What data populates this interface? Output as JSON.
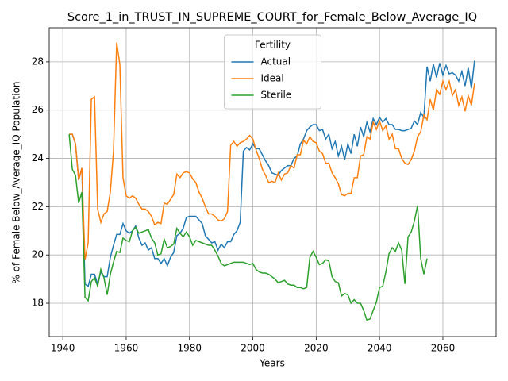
{
  "chart_data": {
    "type": "line",
    "title": "Score_1_in_TRUST_IN_SUPREME_COURT_for_Female_Below_Average_IQ",
    "xlabel": "Years",
    "ylabel": "% of Female Below_Average_IQ Population",
    "legend_title": "Fertility",
    "legend_loc": "upper center",
    "grid": true,
    "xlim": [
      1935.7,
      2076.8
    ],
    "ylim": [
      16.62,
      29.41
    ],
    "xticks": [
      1940,
      1960,
      1980,
      2000,
      2020,
      2040,
      2060
    ],
    "yticks": [
      18,
      20,
      22,
      24,
      26,
      28
    ],
    "x": [
      1942,
      1943,
      1944,
      1945,
      1946,
      1947,
      1948,
      1949,
      1950,
      1951,
      1952,
      1953,
      1954,
      1955,
      1956,
      1957,
      1958,
      1959,
      1960,
      1961,
      1962,
      1963,
      1964,
      1965,
      1966,
      1967,
      1968,
      1969,
      1970,
      1971,
      1972,
      1973,
      1974,
      1975,
      1976,
      1977,
      1978,
      1979,
      1980,
      1981,
      1982,
      1983,
      1984,
      1985,
      1986,
      1987,
      1988,
      1989,
      1990,
      1991,
      1992,
      1993,
      1994,
      1995,
      1996,
      1997,
      1998,
      1999,
      2000,
      2001,
      2002,
      2003,
      2004,
      2005,
      2006,
      2007,
      2008,
      2009,
      2010,
      2011,
      2012,
      2013,
      2014,
      2015,
      2016,
      2017,
      2018,
      2019,
      2020,
      2021,
      2022,
      2023,
      2024,
      2025,
      2026,
      2027,
      2028,
      2029,
      2030,
      2031,
      2032,
      2033,
      2034,
      2035,
      2036,
      2037,
      2038,
      2039,
      2040,
      2041,
      2042,
      2043,
      2044,
      2045,
      2046,
      2047,
      2048,
      2049,
      2050,
      2051,
      2052,
      2053,
      2054,
      2055,
      2056,
      2057,
      2058,
      2059,
      2060,
      2061,
      2062,
      2063,
      2064,
      2065,
      2066,
      2067,
      2068,
      2069,
      2070
    ],
    "series": [
      {
        "name": "Actual",
        "color": "#1f77b4",
        "values": [
          25.0,
          25.0,
          24.6,
          23.1,
          23.6,
          18.8,
          18.7,
          19.2,
          19.2,
          18.8,
          19.3,
          19.1,
          19.1,
          19.9,
          20.4,
          20.85,
          20.85,
          21.3,
          21.0,
          20.9,
          21.0,
          21.2,
          20.7,
          20.4,
          20.5,
          20.2,
          20.3,
          19.85,
          19.85,
          19.65,
          19.85,
          19.55,
          19.9,
          20.1,
          20.8,
          20.9,
          21.1,
          21.55,
          21.6,
          21.6,
          21.6,
          21.45,
          21.3,
          20.8,
          20.65,
          20.5,
          20.55,
          20.2,
          20.45,
          20.3,
          20.55,
          20.55,
          20.85,
          21.0,
          21.35,
          24.3,
          24.45,
          24.35,
          24.6,
          24.4,
          24.4,
          24.15,
          23.9,
          23.7,
          23.4,
          23.35,
          23.3,
          23.5,
          23.6,
          23.7,
          23.7,
          24.0,
          24.1,
          24.6,
          24.8,
          25.15,
          25.3,
          25.4,
          25.4,
          25.15,
          25.2,
          24.8,
          25.0,
          24.4,
          24.7,
          24.1,
          24.5,
          23.95,
          24.6,
          24.2,
          25.0,
          24.5,
          25.3,
          24.9,
          25.5,
          25.1,
          25.65,
          25.4,
          25.7,
          25.5,
          25.65,
          25.4,
          25.4,
          25.2,
          25.2,
          25.15,
          25.15,
          25.2,
          25.25,
          25.55,
          25.4,
          25.9,
          25.7,
          27.8,
          27.2,
          27.9,
          27.35,
          27.95,
          27.45,
          27.85,
          27.5,
          27.55,
          27.45,
          27.2,
          27.6,
          27.0,
          27.75,
          26.9,
          28.05
        ]
      },
      {
        "name": "Ideal",
        "color": "#ff7f0e",
        "values": [
          25.0,
          25.0,
          24.6,
          23.1,
          23.6,
          19.8,
          20.5,
          26.45,
          26.55,
          21.9,
          21.35,
          21.7,
          21.8,
          22.6,
          24.3,
          28.8,
          27.9,
          23.2,
          22.45,
          22.35,
          22.45,
          22.35,
          22.1,
          21.9,
          21.9,
          21.8,
          21.6,
          21.25,
          21.35,
          21.3,
          22.15,
          22.1,
          22.3,
          22.5,
          23.35,
          23.2,
          23.4,
          23.45,
          23.4,
          23.15,
          23.0,
          22.6,
          22.35,
          22.0,
          21.7,
          21.7,
          21.6,
          21.45,
          21.4,
          21.5,
          21.8,
          24.55,
          24.7,
          24.5,
          24.65,
          24.7,
          24.8,
          24.95,
          24.8,
          24.35,
          24.0,
          23.55,
          23.3,
          23.0,
          23.05,
          23.0,
          23.4,
          23.1,
          23.35,
          23.4,
          23.7,
          23.6,
          24.15,
          24.15,
          24.75,
          24.6,
          24.9,
          24.7,
          24.65,
          24.3,
          24.2,
          23.8,
          23.8,
          23.4,
          23.2,
          22.95,
          22.5,
          22.45,
          22.55,
          22.55,
          23.2,
          23.2,
          24.1,
          24.15,
          24.9,
          24.8,
          25.5,
          25.2,
          25.55,
          25.15,
          25.35,
          24.8,
          25.0,
          24.4,
          24.4,
          24.0,
          23.8,
          23.75,
          23.95,
          24.3,
          24.9,
          25.1,
          25.8,
          25.6,
          26.45,
          26.0,
          26.85,
          26.65,
          27.2,
          26.85,
          27.2,
          26.6,
          26.85,
          26.2,
          26.55,
          25.95,
          26.6,
          26.2,
          27.1
        ]
      },
      {
        "name": "Sterile",
        "color": "#2ca02c",
        "values": [
          25.0,
          23.55,
          23.3,
          22.15,
          22.6,
          18.25,
          18.1,
          18.9,
          19.05,
          18.7,
          19.4,
          19.05,
          18.35,
          19.2,
          19.7,
          20.15,
          20.1,
          20.7,
          20.6,
          20.55,
          21.0,
          21.15,
          20.9,
          20.95,
          21.0,
          21.05,
          20.7,
          20.5,
          20.0,
          20.05,
          20.65,
          20.3,
          20.35,
          20.45,
          21.1,
          20.9,
          20.75,
          20.95,
          20.75,
          20.4,
          20.6,
          20.55,
          20.5,
          20.45,
          20.4,
          20.4,
          20.2,
          19.95,
          19.65,
          19.55,
          19.6,
          19.65,
          19.7,
          19.7,
          19.7,
          19.7,
          19.65,
          19.6,
          19.65,
          19.4,
          19.3,
          19.25,
          19.25,
          19.2,
          19.1,
          19.0,
          18.85,
          18.9,
          18.95,
          18.8,
          18.75,
          18.75,
          18.65,
          18.65,
          18.6,
          18.65,
          19.9,
          20.15,
          19.9,
          19.6,
          19.65,
          19.8,
          19.75,
          19.1,
          18.9,
          18.85,
          18.3,
          18.4,
          18.35,
          18.0,
          18.15,
          18.0,
          18.0,
          17.7,
          17.3,
          17.35,
          17.7,
          18.05,
          18.65,
          18.7,
          19.3,
          20.05,
          20.3,
          20.15,
          20.5,
          20.2,
          18.8,
          20.75,
          20.95,
          21.4,
          22.05,
          19.85,
          19.2,
          19.85,
          null,
          null,
          null,
          null,
          null,
          null,
          null,
          null,
          null,
          null,
          null,
          null,
          null,
          null,
          null
        ]
      }
    ]
  }
}
